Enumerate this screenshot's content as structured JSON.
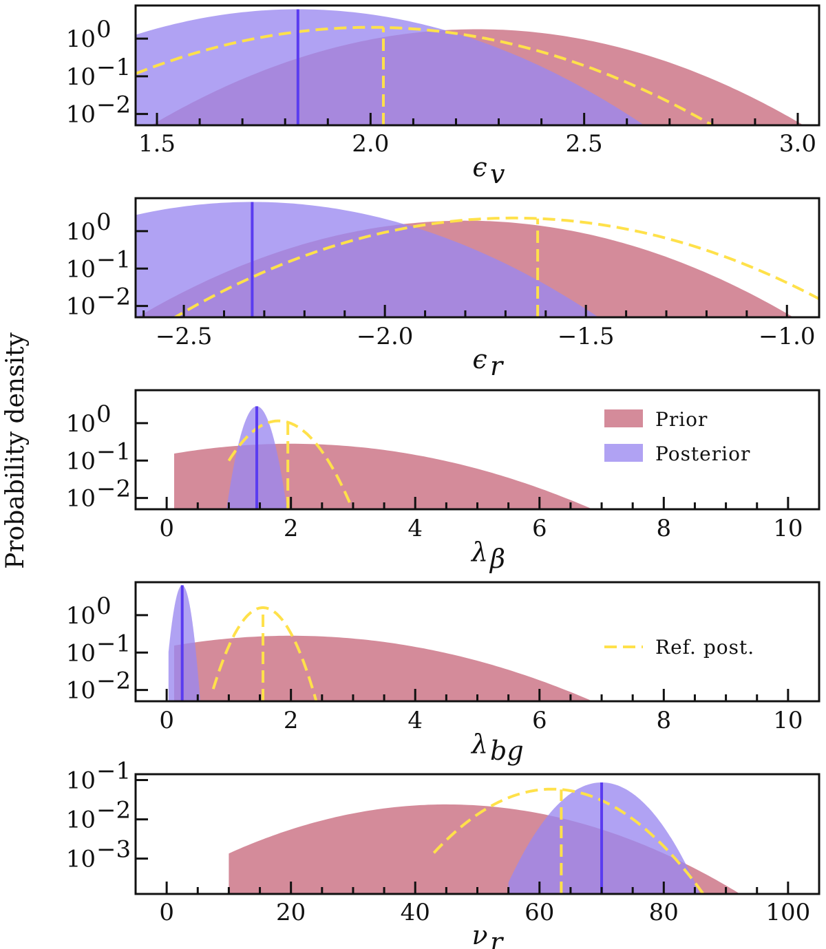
{
  "figure": {
    "ylabel": "Probability density",
    "colors": {
      "prior": "#d48b9a",
      "posterior": "#9a88f0",
      "posterior_line": "#5a3cf0",
      "reference": "#ffe14a"
    },
    "legend": {
      "prior": "Prior",
      "posterior": "Posterior",
      "reference": "Ref. post."
    }
  },
  "chart_data": [
    {
      "type": "area",
      "xlabel": "ϵ",
      "xlabel_sub": "v",
      "xlim": [
        1.45,
        3.05
      ],
      "xticks": [
        {
          "v": 1.5,
          "t": "1.5"
        },
        {
          "v": 2.0,
          "t": "2.0"
        },
        {
          "v": 2.5,
          "t": "2.5"
        },
        {
          "v": 3.0,
          "t": "3.0"
        }
      ],
      "minor_step": 0.1,
      "yticks": [
        {
          "exp": 0,
          "t": "10",
          "sup": "0"
        },
        {
          "exp": -1,
          "t": "10",
          "sup": "−1"
        },
        {
          "exp": -2,
          "t": "10",
          "sup": "−2"
        }
      ],
      "ylim_log": [
        -2.3,
        0.88
      ],
      "series": [
        {
          "name": "Prior",
          "kind": "fill",
          "peak_x": 2.25,
          "peak_log": 0.25,
          "drop_left": 2.8,
          "drop_right": 2.8,
          "range": [
            1.45,
            3.05
          ]
        },
        {
          "name": "Posterior",
          "kind": "fill",
          "peak_x": 1.83,
          "peak_log": 0.78,
          "drop_left": 3.0,
          "drop_right": 3.0,
          "range": [
            1.45,
            3.05
          ]
        },
        {
          "name": "Ref. post.",
          "kind": "dashed",
          "peak_x": 2.0,
          "peak_log": 0.3,
          "drop_left": 2.6,
          "drop_right": 2.6,
          "range": [
            1.45,
            3.05
          ]
        }
      ],
      "posterior_marker": 1.83,
      "reference_marker": 2.03,
      "legend": []
    },
    {
      "type": "area",
      "xlabel": "ϵ",
      "xlabel_sub": "r",
      "xlim": [
        -2.62,
        -0.92
      ],
      "xticks": [
        {
          "v": -2.5,
          "t": "−2.5"
        },
        {
          "v": -2.0,
          "t": "−2.0"
        },
        {
          "v": -1.5,
          "t": "−1.5"
        },
        {
          "v": -1.0,
          "t": "−1.0"
        }
      ],
      "minor_step": 0.1,
      "yticks": [
        {
          "exp": 0,
          "t": "10",
          "sup": "0"
        },
        {
          "exp": -1,
          "t": "10",
          "sup": "−1"
        },
        {
          "exp": -2,
          "t": "10",
          "sup": "−2"
        }
      ],
      "ylim_log": [
        -2.3,
        0.88
      ],
      "series": [
        {
          "name": "Prior",
          "kind": "fill",
          "peak_x": -1.8,
          "peak_log": 0.28,
          "drop_left": 2.8,
          "drop_right": 2.8,
          "range": [
            -2.62,
            -0.92
          ]
        },
        {
          "name": "Posterior",
          "kind": "fill",
          "peak_x": -2.33,
          "peak_log": 0.78,
          "drop_left": 3.0,
          "drop_right": 3.0,
          "range": [
            -2.62,
            -0.92
          ]
        },
        {
          "name": "Ref. post.",
          "kind": "dashed",
          "peak_x": -1.68,
          "peak_log": 0.35,
          "drop_left": 2.7,
          "drop_right": 2.7,
          "range": [
            -2.62,
            -0.92
          ]
        }
      ],
      "posterior_marker": -2.33,
      "reference_marker": -1.62,
      "legend": []
    },
    {
      "type": "area",
      "xlabel": "λ",
      "xlabel_sub": "β",
      "xlim": [
        -0.5,
        10.5
      ],
      "xticks": [
        {
          "v": 0,
          "t": "0"
        },
        {
          "v": 2,
          "t": "2"
        },
        {
          "v": 4,
          "t": "4"
        },
        {
          "v": 6,
          "t": "6"
        },
        {
          "v": 8,
          "t": "8"
        },
        {
          "v": 10,
          "t": "10"
        }
      ],
      "minor_step": 0.5,
      "yticks": [
        {
          "exp": 0,
          "t": "10",
          "sup": "0"
        },
        {
          "exp": -1,
          "t": "10",
          "sup": "−1"
        },
        {
          "exp": -2,
          "t": "10",
          "sup": "−2"
        }
      ],
      "ylim_log": [
        -2.3,
        0.88
      ],
      "series": [
        {
          "name": "Prior",
          "kind": "fill",
          "peak_x": 2.0,
          "peak_log": -0.55,
          "drop_left": 2.0,
          "drop_right": 2.0,
          "range": [
            0.12,
            10.5
          ]
        },
        {
          "name": "Posterior",
          "kind": "fill",
          "peak_x": 1.45,
          "peak_log": 0.45,
          "drop_left": 2.9,
          "drop_right": 2.9,
          "range": [
            0.95,
            1.95
          ]
        },
        {
          "name": "Ref. post.",
          "kind": "dashed",
          "peak_x": 1.8,
          "peak_log": 0.06,
          "drop_left": 2.6,
          "drop_right": 2.6,
          "range": [
            1.0,
            3.5
          ]
        }
      ],
      "posterior_marker": 1.45,
      "reference_marker": 1.95,
      "legend": [
        "Prior",
        "Posterior"
      ]
    },
    {
      "type": "area",
      "xlabel": "λ",
      "xlabel_sub": "bg",
      "xlim": [
        -0.5,
        10.5
      ],
      "xticks": [
        {
          "v": 0,
          "t": "0"
        },
        {
          "v": 2,
          "t": "2"
        },
        {
          "v": 4,
          "t": "4"
        },
        {
          "v": 6,
          "t": "6"
        },
        {
          "v": 8,
          "t": "8"
        },
        {
          "v": 10,
          "t": "10"
        }
      ],
      "minor_step": 0.5,
      "yticks": [
        {
          "exp": 0,
          "t": "10",
          "sup": "0"
        },
        {
          "exp": -1,
          "t": "10",
          "sup": "−1"
        },
        {
          "exp": -2,
          "t": "10",
          "sup": "−2"
        }
      ],
      "ylim_log": [
        -2.3,
        0.88
      ],
      "series": [
        {
          "name": "Prior",
          "kind": "fill",
          "peak_x": 2.0,
          "peak_log": -0.55,
          "drop_left": 2.0,
          "drop_right": 2.0,
          "range": [
            0.12,
            10.5
          ]
        },
        {
          "name": "Posterior",
          "kind": "fill",
          "peak_x": 0.25,
          "peak_log": 0.8,
          "drop_left": 3.2,
          "drop_right": 3.2,
          "range": [
            0.03,
            0.62
          ]
        },
        {
          "name": "Ref. post.",
          "kind": "dashed",
          "peak_x": 1.55,
          "peak_log": 0.2,
          "drop_left": 2.6,
          "drop_right": 2.6,
          "range": [
            0.75,
            2.5
          ]
        }
      ],
      "posterior_marker": 0.25,
      "reference_marker": 1.55,
      "legend": [
        "Ref. post."
      ]
    },
    {
      "type": "area",
      "xlabel": "ν",
      "xlabel_sub": "r",
      "xlim": [
        -5,
        105
      ],
      "xticks": [
        {
          "v": 0,
          "t": "0"
        },
        {
          "v": 20,
          "t": "20"
        },
        {
          "v": 40,
          "t": "40"
        },
        {
          "v": 60,
          "t": "60"
        },
        {
          "v": 80,
          "t": "80"
        },
        {
          "v": 100,
          "t": "100"
        }
      ],
      "minor_step": 5,
      "yticks": [
        {
          "exp": -1,
          "t": "10",
          "sup": "−1"
        },
        {
          "exp": -2,
          "t": "10",
          "sup": "−2"
        },
        {
          "exp": -3,
          "t": "10",
          "sup": "−3"
        }
      ],
      "ylim_log": [
        -3.9,
        -0.85
      ],
      "series": [
        {
          "name": "Prior",
          "kind": "fill",
          "peak_x": 45,
          "peak_log": -1.62,
          "drop_left": 2.3,
          "drop_right": 2.3,
          "range": [
            10,
            105
          ]
        },
        {
          "name": "Posterior",
          "kind": "fill",
          "peak_x": 70,
          "peak_log": -1.06,
          "drop_left": 2.9,
          "drop_right": 2.9,
          "range": [
            55,
            87
          ]
        },
        {
          "name": "Ref. post.",
          "kind": "dashed",
          "peak_x": 62,
          "peak_log": -1.23,
          "drop_left": 2.7,
          "drop_right": 2.7,
          "range": [
            43,
            92
          ]
        }
      ],
      "posterior_marker": 70,
      "reference_marker": 63.5,
      "legend": []
    }
  ]
}
